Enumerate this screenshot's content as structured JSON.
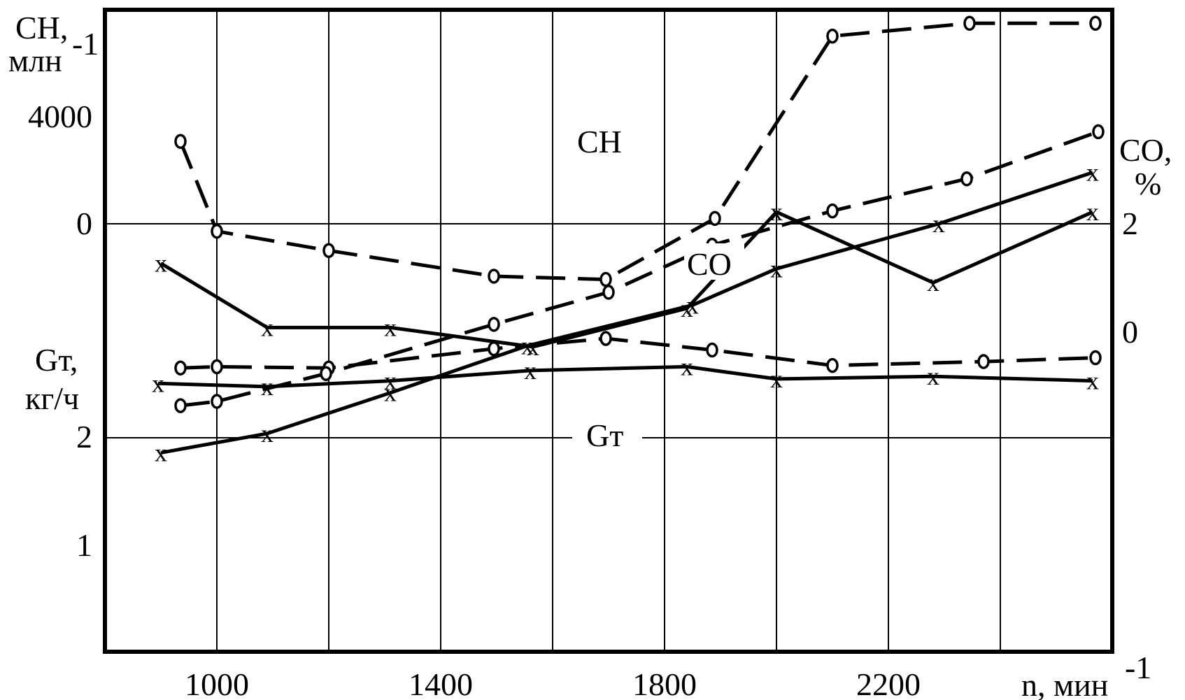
{
  "chart_data": {
    "type": "line",
    "xlabel": "n, мин",
    "xlabel_exp": "-1",
    "xlim": [
      800,
      2600
    ],
    "x_ticks": [
      "1000",
      "1400",
      "1800",
      "2200"
    ],
    "panels": [
      {
        "id": "CH",
        "axis_title": "CH,",
        "axis_unit": "млн",
        "axis_unit_exp": "-1",
        "ylim": [
          -4000,
          6000
        ],
        "ticks": [
          "4000",
          "0"
        ],
        "curve_label": "CH",
        "series": [
          {
            "style": "dashed",
            "marker": "o",
            "x": [
              935,
              1000,
              1200,
              1495,
              1695,
              1890,
              2100,
              2345,
              2570
            ],
            "y": [
              3950,
              2550,
              2250,
              1850,
              1800,
              2750,
              5590,
              5790,
              5790
            ]
          },
          {
            "style": "solid",
            "marker": "x",
            "x": [
              900,
              1090,
              1310,
              1565,
              1840,
              2000,
              2280,
              2565
            ],
            "y": [
              2050,
              1050,
              1050,
              750,
              1350,
              2850,
              1750,
              2850
            ]
          }
        ]
      },
      {
        "id": "CO",
        "axis_title": "CO,",
        "axis_unit": "%",
        "ylim": [
          -4,
          6
        ],
        "ticks": [
          "2",
          "0"
        ],
        "curve_label": "CO",
        "series": [
          {
            "style": "dashed",
            "marker": "o",
            "x": [
              935,
              1000,
              1200,
              1495,
              1695,
              1885,
              2100,
              2370,
              2570
            ],
            "y": [
              0.42,
              0.44,
              0.42,
              0.72,
              0.88,
              0.7,
              0.46,
              0.52,
              0.58
            ]
          },
          {
            "style": "solid",
            "marker": "x",
            "x": [
              895,
              1090,
              1310,
              1560,
              1840,
              2000,
              2280,
              2565
            ],
            "y": [
              0.18,
              0.13,
              0.22,
              0.38,
              0.44,
              0.25,
              0.29,
              0.22
            ]
          }
        ]
      },
      {
        "id": "Gt",
        "axis_title": "Gт,",
        "axis_unit": "кг/ч",
        "ylim": [
          0,
          3
        ],
        "ticks": [
          "2",
          "1"
        ],
        "curve_label": "Gт",
        "series": [
          {
            "style": "dashed",
            "marker": "o",
            "x": [
              935,
              1000,
              1195,
              1495,
              1700,
              1885,
              2100,
              2340,
              2575
            ],
            "y": [
              1.15,
              1.17,
              1.3,
              1.53,
              1.68,
              1.9,
              2.06,
              2.21,
              2.43
            ]
          },
          {
            "style": "solid",
            "marker": "x",
            "x": [
              900,
              1090,
              1310,
              1555,
              1850,
              2000,
              2290,
              2565
            ],
            "y": [
              0.93,
              1.02,
              1.21,
              1.43,
              1.62,
              1.79,
              2.0,
              2.24
            ]
          }
        ]
      }
    ]
  }
}
